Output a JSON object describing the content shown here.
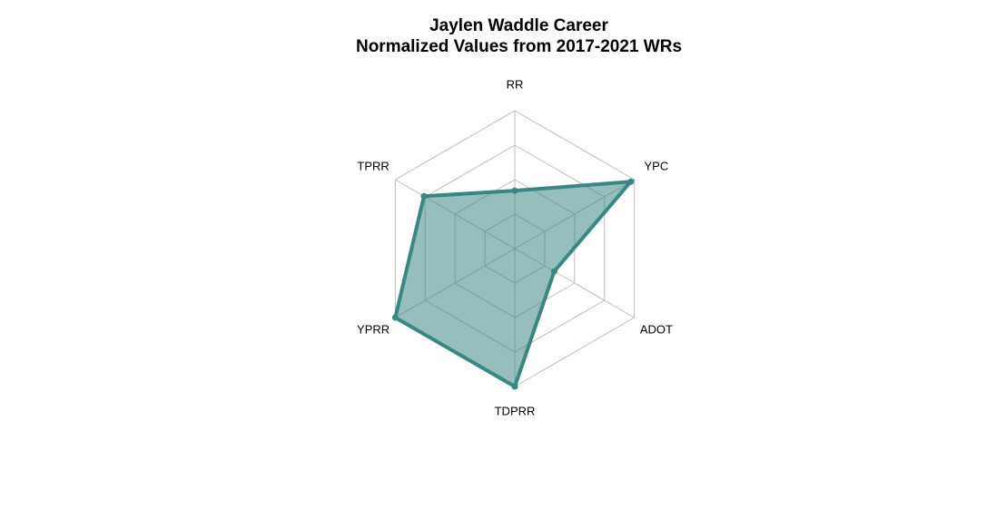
{
  "chart_data": {
    "type": "radar",
    "title": "Jaylen Waddle Career",
    "subtitle": "Normalized Values from 2017-2021 WRs",
    "axes": [
      "RR",
      "YPC",
      "ADOT",
      "TDPRR",
      "YPRR",
      "TPRR"
    ],
    "range": [
      0,
      1
    ],
    "grid_levels": 4,
    "series": [
      {
        "values": [
          0.42,
          0.97,
          0.33,
          1.0,
          1.0,
          0.76
        ]
      }
    ],
    "colors": {
      "fill": "#2e7d7a",
      "stroke": "#3a8683",
      "grid": "#bdbdbd"
    }
  }
}
